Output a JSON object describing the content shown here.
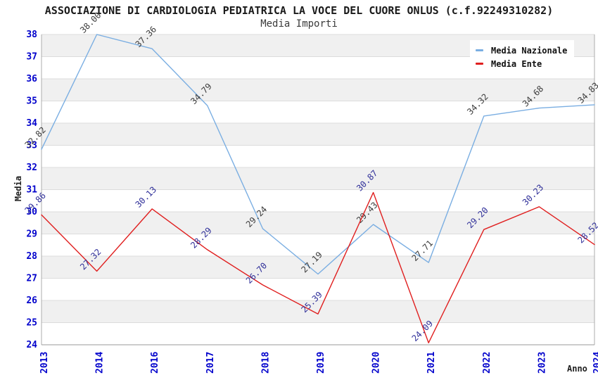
{
  "page": {
    "title": "ASSOCIAZIONE DI CARDIOLOGIA PEDIATRICA LA VOCE DEL CUORE ONLUS (c.f.92249310282)",
    "subtitle": "Media Importi"
  },
  "chart_data": {
    "type": "line",
    "title": "ASSOCIAZIONE DI CARDIOLOGIA PEDIATRICA LA VOCE DEL CUORE ONLUS (c.f.92249310282)",
    "subtitle": "Media Importi",
    "xlabel": "Anno",
    "ylabel": "Media",
    "ylim": [
      24,
      38
    ],
    "ytick_step": 1,
    "yticks": [
      24,
      25,
      26,
      27,
      28,
      29,
      30,
      31,
      32,
      33,
      34,
      35,
      36,
      37,
      38
    ],
    "grid": "horizontal gridlines with alternating gray bands",
    "legend_position": "top-right",
    "categories": [
      "2013",
      "2014",
      "2016",
      "2017",
      "2018",
      "2019",
      "2020",
      "2021",
      "2022",
      "2023",
      "2024"
    ],
    "series": [
      {
        "name": "Media Nazionale",
        "color": "#7AAEE2",
        "label_color": "#3C3C3C",
        "values": [
          32.82,
          38.0,
          37.36,
          34.79,
          29.24,
          27.19,
          29.43,
          27.71,
          34.32,
          34.68,
          34.83
        ],
        "labels": [
          "32.82",
          "38.00",
          "37.36",
          "34.79",
          "29.24",
          "27.19",
          "29.43",
          "27.71",
          "34.32",
          "34.68",
          "34.83"
        ]
      },
      {
        "name": "Media Ente",
        "color": "#E01F1F",
        "label_color": "#2F2F99",
        "values": [
          29.86,
          27.32,
          30.13,
          28.29,
          26.7,
          25.39,
          30.87,
          24.09,
          29.2,
          30.23,
          28.52
        ],
        "labels": [
          "29.86",
          "27.32",
          "30.13",
          "28.29",
          "26.70",
          "25.39",
          "30.87",
          "24.09",
          "29.20",
          "30.23",
          "28.52"
        ]
      }
    ],
    "style_colors": {
      "tick_label_blue": "#0202CC",
      "band_gray": "#F0F0F0",
      "gridline": "#DCDCDC",
      "plot_border": "#ADADAD",
      "background": "#FFFFFF"
    }
  }
}
